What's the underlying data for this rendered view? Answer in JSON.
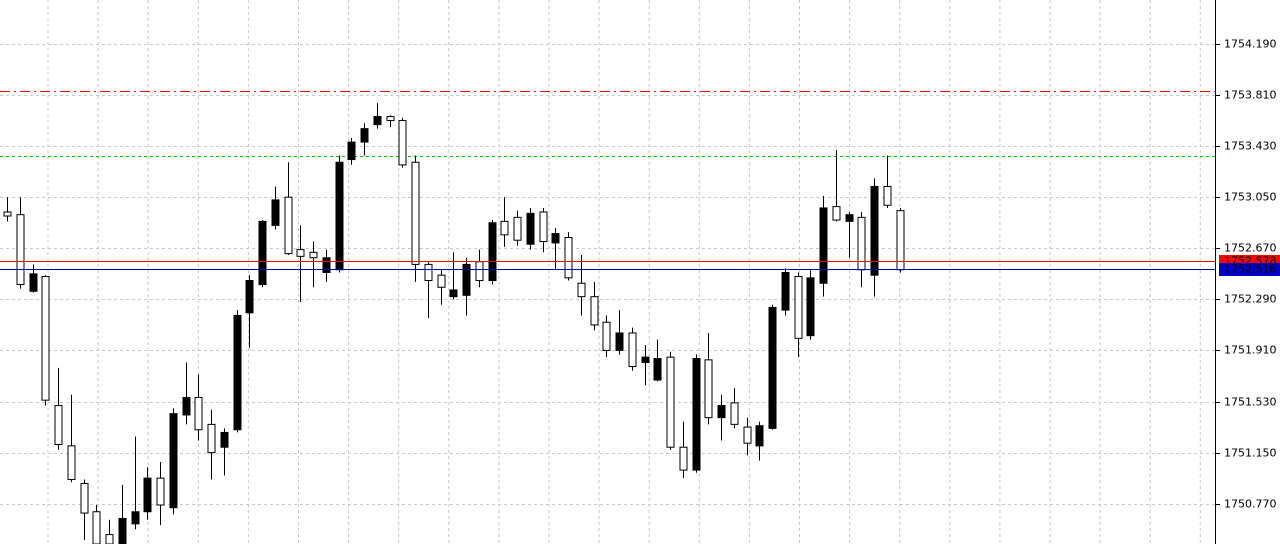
{
  "chart_data": {
    "type": "candlestick",
    "open": [
      1752.94,
      1752.92,
      1752.35,
      1752.46,
      1751.5,
      1751.2,
      1750.92,
      1750.71,
      1750.54,
      1750.47,
      1750.62,
      1750.71,
      1750.96,
      1750.74,
      1751.43,
      1751.56,
      1751.36,
      1751.19,
      1751.32,
      1752.19,
      1752.4,
      1752.84,
      1753.05,
      1752.66,
      1752.64,
      1752.49,
      1752.51,
      1753.33,
      1753.46,
      1753.59,
      1753.65,
      1753.62,
      1753.31,
      1752.55,
      1752.47,
      1752.31,
      1752.32,
      1752.57,
      1752.43,
      1752.87,
      1752.9,
      1752.7,
      1752.94,
      1752.71,
      1752.75,
      1752.41,
      1752.31,
      1752.12,
      1751.91,
      1752.04,
      1751.82,
      1751.69,
      1751.86,
      1751.19,
      1751.02,
      1751.84,
      1751.41,
      1751.52,
      1751.34,
      1751.2,
      1751.33,
      1752.21,
      1752.46,
      1752.02,
      1752.41,
      1752.98,
      1752.87,
      1752.9,
      1752.47,
      1753.13,
      1752.95
    ],
    "high": [
      1753.05,
      1753.05,
      1752.55,
      1752.47,
      1751.78,
      1751.58,
      1750.95,
      1750.76,
      1750.65,
      1750.91,
      1751.27,
      1751.04,
      1751.08,
      1751.48,
      1751.82,
      1751.73,
      1751.47,
      1751.33,
      1752.21,
      1752.47,
      1752.88,
      1753.13,
      1753.31,
      1752.84,
      1752.72,
      1752.66,
      1753.36,
      1753.49,
      1753.6,
      1753.75,
      1753.66,
      1753.64,
      1753.36,
      1752.57,
      1752.51,
      1752.64,
      1752.6,
      1752.66,
      1752.88,
      1753.05,
      1752.95,
      1752.97,
      1752.97,
      1752.82,
      1752.79,
      1752.62,
      1752.42,
      1752.17,
      1752.21,
      1752.08,
      1751.95,
      1751.99,
      1751.9,
      1751.38,
      1751.88,
      1752.04,
      1751.58,
      1751.63,
      1751.41,
      1751.38,
      1752.25,
      1752.52,
      1752.49,
      1752.51,
      1753.06,
      1753.4,
      1752.94,
      1752.94,
      1753.19,
      1753.36,
      1752.97
    ],
    "low": [
      1752.87,
      1752.37,
      1752.34,
      1751.5,
      1751.17,
      1750.93,
      1750.5,
      1750.47,
      1750.47,
      1750.47,
      1750.58,
      1750.65,
      1750.61,
      1750.69,
      1751.36,
      1751.24,
      1750.95,
      1750.98,
      1751.3,
      1751.93,
      1752.38,
      1752.81,
      1752.62,
      1752.27,
      1752.38,
      1752.42,
      1752.49,
      1753.29,
      1753.36,
      1753.56,
      1753.57,
      1753.27,
      1752.42,
      1752.15,
      1752.25,
      1752.29,
      1752.17,
      1752.38,
      1752.4,
      1752.68,
      1752.69,
      1752.66,
      1752.64,
      1752.51,
      1752.43,
      1752.17,
      1752.06,
      1751.86,
      1751.88,
      1751.76,
      1751.65,
      1751.68,
      1751.17,
      1750.96,
      1751.0,
      1751.36,
      1751.24,
      1751.33,
      1751.13,
      1751.09,
      1751.32,
      1752.17,
      1751.86,
      1751.99,
      1752.31,
      1752.87,
      1752.6,
      1752.38,
      1752.31,
      1752.97,
      1752.49
    ],
    "close": [
      1752.91,
      1752.4,
      1752.48,
      1751.54,
      1751.21,
      1750.95,
      1750.7,
      1750.47,
      1750.47,
      1750.66,
      1750.71,
      1750.96,
      1750.76,
      1751.44,
      1751.56,
      1751.32,
      1751.15,
      1751.3,
      1752.17,
      1752.43,
      1752.87,
      1753.03,
      1752.63,
      1752.61,
      1752.6,
      1752.6,
      1753.31,
      1753.46,
      1753.56,
      1753.65,
      1753.62,
      1753.29,
      1752.55,
      1752.43,
      1752.38,
      1752.36,
      1752.55,
      1752.43,
      1752.86,
      1752.77,
      1752.73,
      1752.93,
      1752.72,
      1752.78,
      1752.45,
      1752.31,
      1752.1,
      1751.91,
      1752.04,
      1751.79,
      1751.86,
      1751.85,
      1751.19,
      1751.02,
      1751.85,
      1751.41,
      1751.5,
      1751.36,
      1751.22,
      1751.35,
      1752.23,
      1752.49,
      1752.0,
      1752.45,
      1752.97,
      1752.88,
      1752.92,
      1752.51,
      1753.13,
      1752.99,
      1752.51
    ],
    "up_color": "#000000",
    "down_color": "#ffffff",
    "outline_color": "#000000",
    "ylim": [
      1750.47,
      1754.517
    ],
    "yticks": [
      {
        "value": 1754.19,
        "label": "1754.190"
      },
      {
        "value": 1753.81,
        "label": "1753.810"
      },
      {
        "value": 1753.43,
        "label": "1753.430"
      },
      {
        "value": 1753.05,
        "label": "1753.050"
      },
      {
        "value": 1752.67,
        "label": "1752.670"
      },
      {
        "value": 1752.29,
        "label": "1752.290"
      },
      {
        "value": 1751.91,
        "label": "1751.910"
      },
      {
        "value": 1751.53,
        "label": "1751.530"
      },
      {
        "value": 1751.15,
        "label": "1751.150"
      },
      {
        "value": 1750.77,
        "label": "1750.770"
      }
    ],
    "grid": true,
    "levels": [
      {
        "value": 1753.84,
        "color": "#ff0000",
        "style": "dashdot"
      },
      {
        "value": 1753.36,
        "color": "#00c000",
        "style": "dashed"
      }
    ],
    "price_lines": [
      {
        "value": 1752.578,
        "label": "1752.578",
        "color": "#ff0000"
      },
      {
        "value": 1752.516,
        "label": "1752.516",
        "color": "#0000c8"
      }
    ]
  }
}
